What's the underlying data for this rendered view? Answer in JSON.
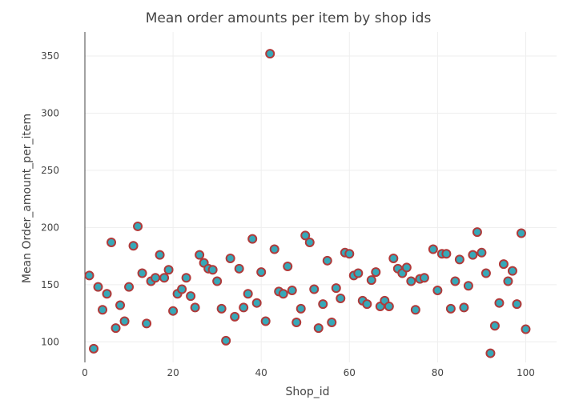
{
  "chart_data": {
    "type": "scatter",
    "title": "Mean order amounts per item by shop ids",
    "xlabel": "Shop_id",
    "ylabel": "Mean Order_amount_per_item",
    "xlim": [
      0,
      107
    ],
    "ylim": [
      82,
      371
    ],
    "xticks": [
      0,
      20,
      40,
      60,
      80,
      100
    ],
    "yticks": [
      100,
      150,
      200,
      250,
      300,
      350
    ],
    "grid": true,
    "marker_fill": "#36a8b8",
    "marker_edge": "#b03a3a",
    "x": [
      1,
      2,
      3,
      4,
      5,
      6,
      7,
      8,
      9,
      10,
      11,
      12,
      13,
      14,
      15,
      16,
      17,
      18,
      19,
      20,
      21,
      22,
      23,
      24,
      25,
      26,
      27,
      28,
      29,
      30,
      31,
      32,
      33,
      34,
      35,
      36,
      37,
      38,
      39,
      40,
      41,
      42,
      43,
      44,
      45,
      46,
      47,
      48,
      49,
      50,
      51,
      52,
      53,
      54,
      55,
      56,
      57,
      58,
      59,
      60,
      61,
      62,
      63,
      64,
      65,
      66,
      67,
      68,
      69,
      70,
      71,
      72,
      73,
      74,
      75,
      76,
      77,
      78,
      79,
      80,
      81,
      82,
      83,
      84,
      85,
      86,
      87,
      88,
      89,
      90,
      91,
      92,
      93,
      94,
      95,
      96,
      97,
      98,
      99,
      100
    ],
    "y": [
      158,
      94,
      148,
      128,
      142,
      187,
      112,
      132,
      118,
      148,
      184,
      201,
      160,
      116,
      153,
      156,
      176,
      156,
      163,
      127,
      142,
      146,
      156,
      140,
      130,
      176,
      169,
      164,
      163,
      153,
      129,
      101,
      173,
      122,
      164,
      130,
      142,
      190,
      134,
      161,
      118,
      352,
      181,
      144,
      142,
      166,
      145,
      117,
      129,
      193,
      187,
      146,
      112,
      133,
      171,
      117,
      147,
      138,
      178,
      177,
      158,
      160,
      136,
      133,
      154,
      161,
      131,
      136,
      131,
      173,
      164,
      160,
      165,
      153,
      128,
      155,
      156,
      null,
      181,
      145,
      177,
      177,
      129,
      153,
      172,
      130,
      149,
      176,
      196,
      178,
      160,
      90,
      114,
      134,
      168,
      153,
      162,
      133,
      195,
      111
    ]
  }
}
